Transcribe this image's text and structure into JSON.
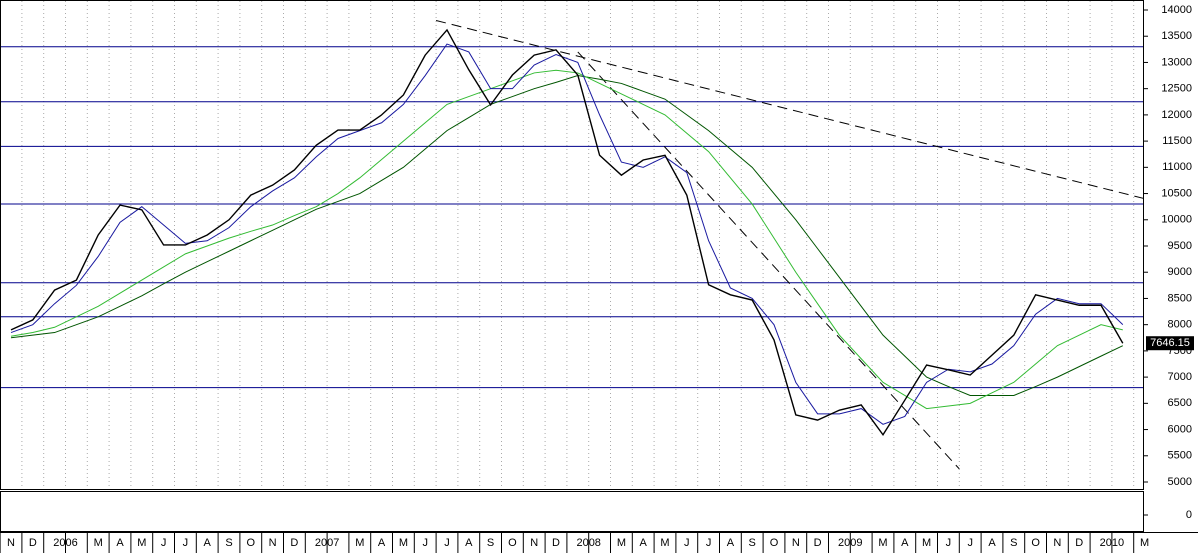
{
  "chart_data": {
    "type": "line",
    "categories": [
      "N",
      "D",
      "2006",
      null,
      "M",
      "A",
      "M",
      "J",
      "J",
      "A",
      "S",
      "O",
      "N",
      "D",
      "2007",
      null,
      "M",
      "A",
      "M",
      "J",
      "J",
      "A",
      "S",
      "O",
      "N",
      "D",
      "2008",
      null,
      "M",
      "A",
      "M",
      "J",
      "J",
      "A",
      "S",
      "O",
      "N",
      "D",
      "2009",
      null,
      "M",
      "A",
      "M",
      "J",
      "J",
      "A",
      "S",
      "O",
      "N",
      "D",
      "2010",
      null,
      "M"
    ],
    "series": [
      {
        "color": "#000000",
        "values": [
          7900,
          8090,
          8660,
          8850,
          9710,
          10280,
          10190,
          9520,
          9520,
          9710,
          10000,
          10470,
          10660,
          10950,
          11420,
          11710,
          11710,
          12000,
          12380,
          13140,
          13620,
          12860,
          12190,
          12760,
          13140,
          13240,
          12760,
          11230,
          10850,
          11140,
          11230,
          10470,
          8760,
          8570,
          8470,
          7710,
          6280,
          6180,
          6370,
          6470,
          5900,
          6560,
          7230,
          7140,
          7040,
          7420,
          7800,
          8570,
          8470,
          8370,
          8370,
          7646.15,
          null
        ]
      },
      {
        "color": "#1a1aa0",
        "values": [
          7850,
          8000,
          8400,
          8750,
          9300,
          9950,
          10250,
          9900,
          9550,
          9600,
          9850,
          10250,
          10550,
          10800,
          11200,
          11550,
          11700,
          11850,
          12200,
          12750,
          13350,
          13200,
          12500,
          12500,
          12950,
          13150,
          13000,
          12000,
          11100,
          11000,
          11200,
          10900,
          9600,
          8700,
          8500,
          8000,
          6900,
          6300,
          6300,
          6400,
          6100,
          6250,
          6900,
          7150,
          7100,
          7250,
          7600,
          8200,
          8500,
          8400,
          8400,
          8000,
          null
        ]
      },
      {
        "color": "#33bb33",
        "values": [
          7780,
          7850,
          7950,
          8150,
          8350,
          8600,
          8850,
          9100,
          9350,
          9500,
          9650,
          9780,
          9900,
          10080,
          10250,
          10500,
          10800,
          11150,
          11500,
          11850,
          12200,
          12350,
          12500,
          12650,
          12800,
          12850,
          12800,
          12600,
          12400,
          12200,
          12000,
          11650,
          11300,
          10800,
          10300,
          9650,
          9000,
          8400,
          7800,
          7350,
          6900,
          6650,
          6400,
          6450,
          6500,
          6700,
          6900,
          7250,
          7600,
          7800,
          8000,
          7900,
          null
        ]
      },
      {
        "color": "#005500",
        "values": [
          7750,
          7800,
          7850,
          8000,
          8150,
          8350,
          8550,
          8780,
          9000,
          9200,
          9400,
          9600,
          9800,
          10000,
          10200,
          10350,
          10500,
          10750,
          11000,
          11350,
          11700,
          11950,
          12200,
          12350,
          12500,
          12620,
          12750,
          12680,
          12600,
          12450,
          12300,
          12000,
          11700,
          11350,
          11000,
          10500,
          10000,
          9450,
          8900,
          8350,
          7800,
          7400,
          7000,
          6820,
          6650,
          6650,
          6650,
          6820,
          7000,
          7200,
          7400,
          7600,
          null
        ]
      }
    ],
    "levels": [
      13300,
      12250,
      11400,
      10300,
      8800,
      8150,
      6800
    ],
    "level_color": "#00008b",
    "trendlines": [
      {
        "from": [
          19.5,
          13800
        ],
        "to": [
          52.5,
          10350
        ]
      },
      {
        "from": [
          26,
          13200
        ],
        "to": [
          43.5,
          5250
        ]
      }
    ],
    "ylim": [
      5000,
      14000
    ],
    "yticks": [
      5000,
      5500,
      6000,
      6500,
      7000,
      7500,
      8000,
      8500,
      9000,
      9500,
      10000,
      10500,
      11000,
      11500,
      12000,
      12500,
      13000,
      13500,
      14000
    ],
    "lower_yticks": [
      0
    ]
  }
}
